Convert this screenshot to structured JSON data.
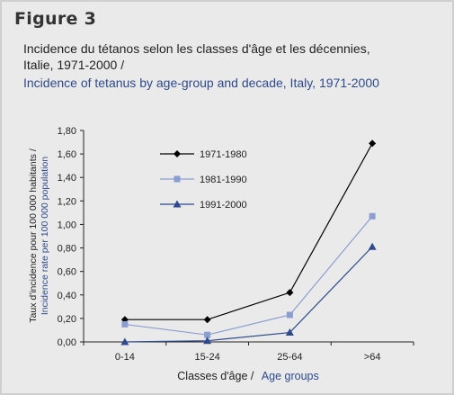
{
  "figure": {
    "label": "Figure 3",
    "subtitle_fr_line1": "Incidence du tétanos selon les classes d'âge et les décennies,",
    "subtitle_fr_line2": "Italie, 1971-2000 /",
    "subtitle_en": "Incidence of tetanus by age-group and decade, Italy, 1971-2000"
  },
  "chart_data": {
    "type": "line",
    "categories": [
      "0-14",
      "15-24",
      "25-64",
      ">64"
    ],
    "ylim": [
      0,
      1.8
    ],
    "yticks": [
      "0,00",
      "0,20",
      "0,40",
      "0,60",
      "0,80",
      "1,00",
      "1,20",
      "1,40",
      "1,60",
      "1,80"
    ],
    "xlabel_fr": "Classes d'âge /",
    "xlabel_en": "Age groups",
    "ylabel_fr": "Taux d'incidence pour 100 000 habitants /",
    "ylabel_en": "Incidence rate per 100 000 population",
    "grid": false,
    "legend_position": "top-left",
    "series": [
      {
        "name": "1971-1980",
        "values": [
          0.19,
          0.19,
          0.42,
          1.69
        ],
        "color": "#000000",
        "marker": "diamond"
      },
      {
        "name": "1981-1990",
        "values": [
          0.15,
          0.06,
          0.23,
          1.07
        ],
        "color": "#8a9fd0",
        "marker": "square"
      },
      {
        "name": "1991-2000",
        "values": [
          0.0,
          0.01,
          0.08,
          0.81
        ],
        "color": "#2e4a8c",
        "marker": "triangle"
      }
    ]
  }
}
